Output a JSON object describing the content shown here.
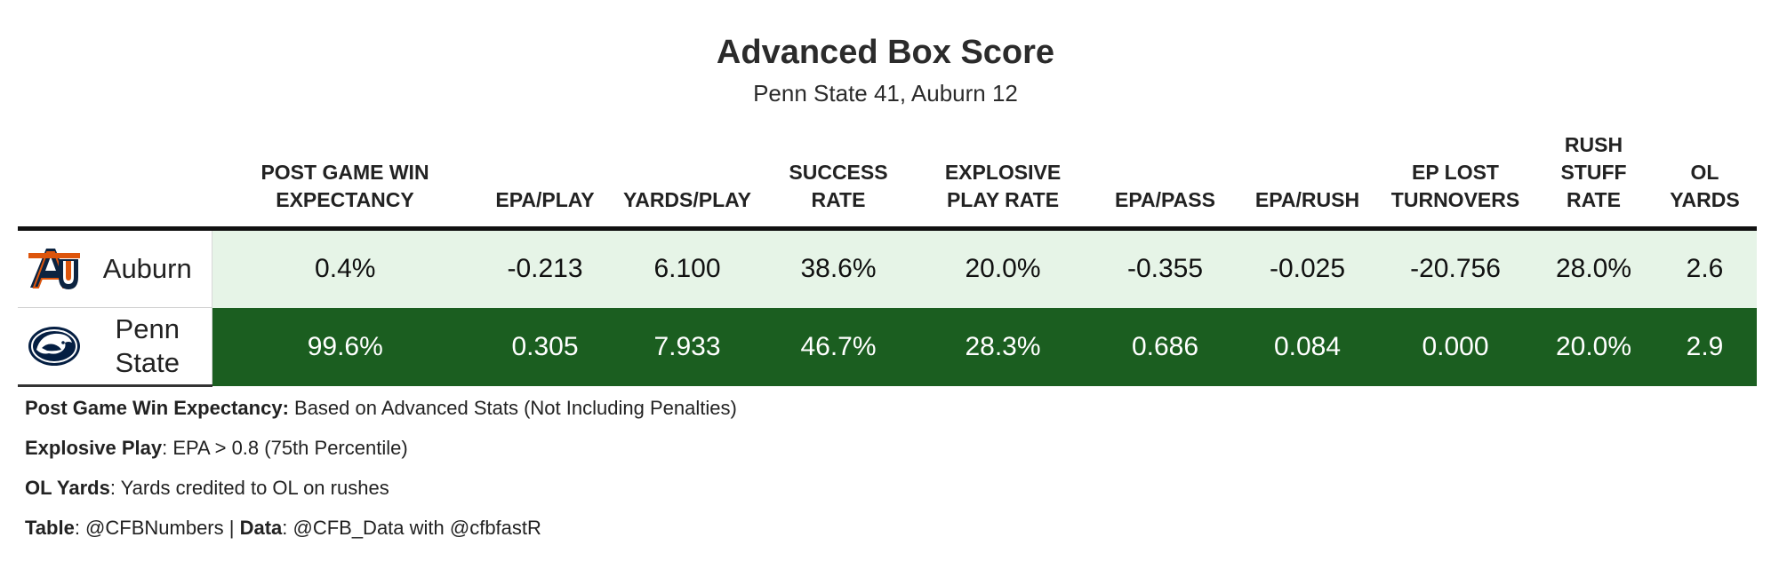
{
  "title": "Advanced Box Score",
  "subtitle": "Penn State 41, Auburn 12",
  "table": {
    "columns": [
      "Post Game Win Expectancy",
      "EPA/Play",
      "Yards/Play",
      "Success Rate",
      "Explosive Play Rate",
      "EPA/Pass",
      "EPA/Rush",
      "EP Lost Turnovers",
      "Rush Stuff Rate",
      "OL Yards"
    ],
    "rows": [
      {
        "team": "Auburn",
        "logo_icon": "auburn-au-logo-icon",
        "values": [
          "0.4%",
          "-0.213",
          "6.100",
          "38.6%",
          "20.0%",
          "-0.355",
          "-0.025",
          "-20.756",
          "28.0%",
          "2.6"
        ]
      },
      {
        "team": "Penn State",
        "logo_icon": "penn-state-nittany-lion-logo-icon",
        "values": [
          "99.6%",
          "0.305",
          "7.933",
          "46.7%",
          "28.3%",
          "0.686",
          "0.084",
          "0.000",
          "20.0%",
          "2.9"
        ]
      }
    ]
  },
  "colors": {
    "low_fill": "#e6f4e7",
    "high_fill": "#1b5e20",
    "auburn_navy": "#0c2340",
    "auburn_orange": "#dd550c",
    "psu_navy": "#041e42"
  },
  "notes": [
    {
      "label": "Post Game Win Expectancy:",
      "text": " Based on Advanced Stats (Not Including Penalties)"
    },
    {
      "label": "Explosive Play",
      "text": ": EPA > 0.8 (75th Percentile)"
    },
    {
      "label": "OL Yards",
      "text": ": Yards credited to OL on rushes"
    },
    {
      "label": "Table",
      "text": ": @CFBNumbers | ",
      "label2": "Data",
      "text2": ": @CFB_Data with @cfbfastR"
    }
  ],
  "chart_data": {
    "type": "table",
    "title": "Advanced Box Score",
    "subtitle": "Penn State 41, Auburn 12",
    "columns": [
      "Team",
      "Post Game Win Expectancy",
      "EPA/Play",
      "Yards/Play",
      "Success Rate",
      "Explosive Play Rate",
      "EPA/Pass",
      "EPA/Rush",
      "EP Lost Turnovers",
      "Rush Stuff Rate",
      "OL Yards"
    ],
    "rows": [
      [
        "Auburn",
        "0.4%",
        "-0.213",
        "6.100",
        "38.6%",
        "20.0%",
        "-0.355",
        "-0.025",
        "-20.756",
        "28.0%",
        "2.6"
      ],
      [
        "Penn State",
        "99.6%",
        "0.305",
        "7.933",
        "46.7%",
        "28.3%",
        "0.686",
        "0.084",
        "0.000",
        "20.0%",
        "2.9"
      ]
    ]
  }
}
